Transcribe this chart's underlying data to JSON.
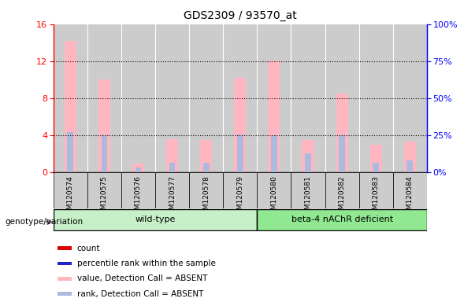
{
  "title": "GDS2309 / 93570_at",
  "samples": [
    "GSM120574",
    "GSM120575",
    "GSM120576",
    "GSM120577",
    "GSM120578",
    "GSM120579",
    "GSM120580",
    "GSM120581",
    "GSM120582",
    "GSM120583",
    "GSM120584"
  ],
  "pink_bars": [
    14.2,
    10.0,
    0.9,
    3.6,
    3.5,
    10.2,
    12.1,
    3.5,
    8.5,
    3.0,
    3.3
  ],
  "blue_bars": [
    4.3,
    4.0,
    0.5,
    1.0,
    1.0,
    4.1,
    4.0,
    2.0,
    4.0,
    1.0,
    1.3
  ],
  "ylim_left": [
    0,
    16
  ],
  "ylim_right": [
    0,
    100
  ],
  "yticks_left": [
    0,
    4,
    8,
    12,
    16
  ],
  "yticks_right": [
    0,
    25,
    50,
    75,
    100
  ],
  "bar_bg_color": "#cccccc",
  "plot_bg_color": "#ffffff",
  "pink_color": "#ffb6c1",
  "light_blue_color": "#aabbdd",
  "wt_color": "#c8f0c8",
  "beta_color": "#90e890",
  "legend_items": [
    {
      "color": "#dd0000",
      "label": "count",
      "marker": "s"
    },
    {
      "color": "#2222cc",
      "label": "percentile rank within the sample",
      "marker": "s"
    },
    {
      "color": "#ffb6c1",
      "label": "value, Detection Call = ABSENT",
      "marker": "s"
    },
    {
      "color": "#aabbdd",
      "label": "rank, Detection Call = ABSENT",
      "marker": "s"
    }
  ],
  "annotation_label": "genotype/variation",
  "wt_samples_count": 6,
  "beta_samples_count": 5
}
